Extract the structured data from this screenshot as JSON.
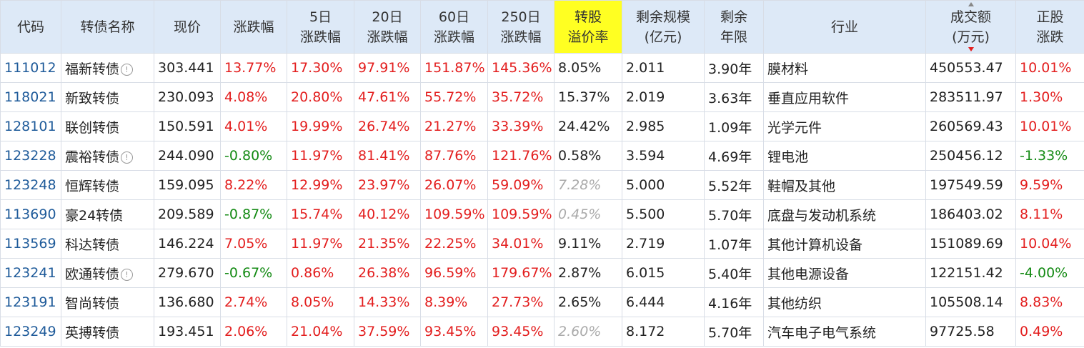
{
  "table": {
    "header": [
      "代码",
      "转债名称",
      "现价",
      "涨跌幅",
      "5日\n涨跌幅",
      "20日\n涨跌幅",
      "60日\n涨跌幅",
      "250日\n涨跌幅",
      "转股\n溢价率",
      "剩余规模\n(亿元)",
      "剩余\n年限",
      "行业",
      "成交额\n(万元)",
      "正股\n涨跌"
    ],
    "highlight_header": 8,
    "sorted_header": 12,
    "rows": [
      {
        "cells": [
          "111012",
          "福新转债",
          "303.441",
          "13.77%",
          "17.30%",
          "97.91%",
          "151.87%",
          "145.36%",
          "8.05%",
          "2.011",
          "3.90年",
          "膜材料",
          "450553.47",
          "10.01%"
        ],
        "info_icon": true,
        "premium_italic": false
      },
      {
        "cells": [
          "118021",
          "新致转债",
          "230.093",
          "4.08%",
          "20.80%",
          "47.61%",
          "55.72%",
          "35.72%",
          "15.37%",
          "2.019",
          "3.63年",
          "垂直应用软件",
          "283511.97",
          "1.30%"
        ],
        "info_icon": false,
        "premium_italic": false
      },
      {
        "cells": [
          "128101",
          "联创转债",
          "150.591",
          "4.01%",
          "19.99%",
          "26.74%",
          "21.27%",
          "33.39%",
          "24.42%",
          "2.985",
          "1.09年",
          "光学元件",
          "260569.43",
          "10.01%"
        ],
        "info_icon": false,
        "premium_italic": false
      },
      {
        "cells": [
          "123228",
          "震裕转债",
          "244.090",
          "-0.80%",
          "11.97%",
          "81.41%",
          "87.76%",
          "121.76%",
          "0.58%",
          "3.594",
          "4.69年",
          "锂电池",
          "250456.12",
          "-1.33%"
        ],
        "info_icon": true,
        "premium_italic": false
      },
      {
        "cells": [
          "123248",
          "恒辉转债",
          "159.095",
          "8.22%",
          "12.99%",
          "23.97%",
          "26.07%",
          "59.09%",
          "7.28%",
          "5.000",
          "5.52年",
          "鞋帽及其他",
          "197549.59",
          "9.59%"
        ],
        "info_icon": false,
        "premium_italic": true
      },
      {
        "cells": [
          "113690",
          "豪24转债",
          "209.589",
          "-0.87%",
          "15.74%",
          "40.12%",
          "109.59%",
          "109.59%",
          "0.45%",
          "5.500",
          "5.70年",
          "底盘与发动机系统",
          "186403.02",
          "8.11%"
        ],
        "info_icon": false,
        "premium_italic": true
      },
      {
        "cells": [
          "113569",
          "科达转债",
          "146.224",
          "7.05%",
          "11.97%",
          "21.35%",
          "22.25%",
          "34.01%",
          "9.11%",
          "2.719",
          "1.07年",
          "其他计算机设备",
          "151089.69",
          "10.04%"
        ],
        "info_icon": false,
        "premium_italic": false
      },
      {
        "cells": [
          "123241",
          "欧通转债",
          "279.670",
          "-0.67%",
          "0.86%",
          "26.38%",
          "96.59%",
          "179.67%",
          "2.87%",
          "6.015",
          "5.40年",
          "其他电源设备",
          "122151.42",
          "-4.00%"
        ],
        "info_icon": true,
        "premium_italic": false
      },
      {
        "cells": [
          "123191",
          "智尚转债",
          "136.680",
          "2.74%",
          "8.05%",
          "14.33%",
          "8.39%",
          "27.73%",
          "2.65%",
          "6.444",
          "4.16年",
          "其他纺织",
          "105508.14",
          "8.83%"
        ],
        "info_icon": false,
        "premium_italic": false
      },
      {
        "cells": [
          "123249",
          "英搏转债",
          "193.451",
          "2.06%",
          "21.04%",
          "37.59%",
          "93.45%",
          "93.45%",
          "2.60%",
          "8.172",
          "5.70年",
          "汽车电子电气系统",
          "97725.58",
          "0.49%"
        ],
        "info_icon": false,
        "premium_italic": true
      }
    ]
  }
}
